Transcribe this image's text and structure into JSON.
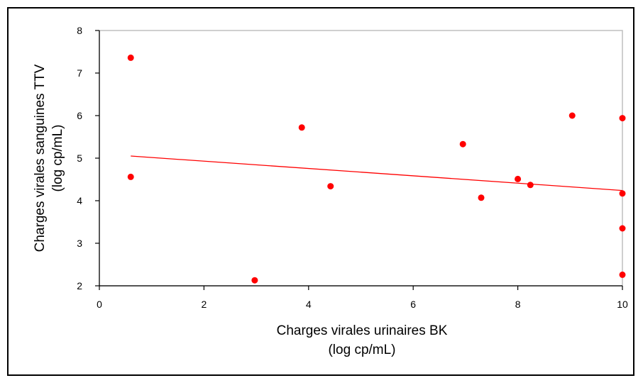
{
  "chart_data": {
    "type": "scatter",
    "xlabel": [
      "Charges virales urinaires BK",
      "(log cp/mL)"
    ],
    "ylabel": [
      "Charges virales sanguines TTV",
      "(log cp/mL)"
    ],
    "xlim": [
      0,
      10
    ],
    "ylim": [
      2,
      8
    ],
    "xticks": [
      0,
      2,
      4,
      6,
      8,
      10
    ],
    "yticks": [
      2,
      3,
      4,
      5,
      6,
      7,
      8
    ],
    "grid": false,
    "legend": "none",
    "colors": {
      "points": "#ff0000",
      "trendline": "#ff0000",
      "axes": "#000000",
      "plot_border": "#bfbfbf"
    },
    "series": [
      {
        "values": [
          {
            "x": 0.6,
            "y": 7.36
          },
          {
            "x": 0.6,
            "y": 4.56
          },
          {
            "x": 2.97,
            "y": 2.13
          },
          {
            "x": 3.87,
            "y": 5.72
          },
          {
            "x": 4.42,
            "y": 4.34
          },
          {
            "x": 6.95,
            "y": 5.33
          },
          {
            "x": 7.3,
            "y": 4.07
          },
          {
            "x": 8.0,
            "y": 4.51
          },
          {
            "x": 8.24,
            "y": 4.37
          },
          {
            "x": 9.04,
            "y": 6.0
          },
          {
            "x": 10.0,
            "y": 5.94
          },
          {
            "x": 10.0,
            "y": 4.17
          },
          {
            "x": 10.0,
            "y": 3.35
          },
          {
            "x": 10.0,
            "y": 2.26
          }
        ]
      }
    ],
    "trendline": {
      "type": "linear",
      "x": [
        0.6,
        10.0
      ],
      "y": [
        5.05,
        4.24
      ]
    }
  }
}
